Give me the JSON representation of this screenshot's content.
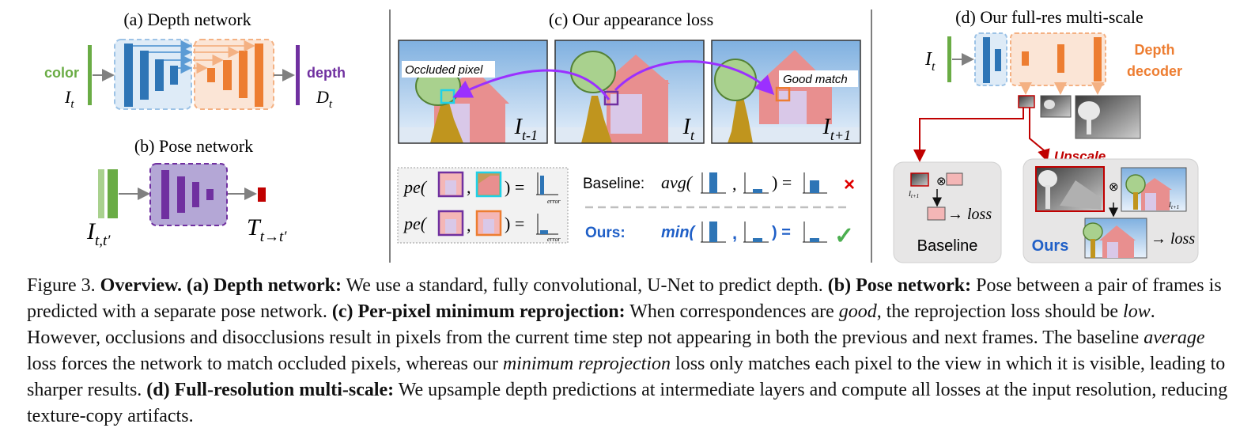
{
  "panels": {
    "a": {
      "title": "(a) Depth network",
      "color_label": "color",
      "input_symbol": "I",
      "input_sub": "t",
      "depth_label": "depth",
      "output_symbol": "D",
      "output_sub": "t"
    },
    "b": {
      "title": "(b) Pose network",
      "input_symbol": "I",
      "input_sub": "t,t′",
      "output_symbol": "T",
      "output_sub": "t→t′"
    },
    "c": {
      "title": "(c) Our appearance loss",
      "occluded_label": "Occluded pixel",
      "good_label": "Good match",
      "frame_labels": [
        {
          "symbol": "I",
          "sub": "t-1"
        },
        {
          "symbol": "I",
          "sub": "t"
        },
        {
          "symbol": "I",
          "sub": "t+1"
        }
      ],
      "pe_text": "pe(",
      "error_label": "error",
      "baseline_label": "Baseline:",
      "baseline_func": "avg(",
      "ours_label": "Ours:",
      "ours_func": "min(",
      "cross_mark": "×",
      "check_mark": "✓"
    },
    "d": {
      "title": "(d) Our full-res multi-scale",
      "input_symbol": "I",
      "input_sub": "t",
      "decoder_line1": "Depth",
      "decoder_line2": "decoder",
      "upscale_label": "Upscale",
      "otimes": "⊗",
      "loss_label": "→ loss",
      "small_sub": "t+1",
      "baseline_label": "Baseline",
      "ours_label": "Ours"
    }
  },
  "caption": {
    "figure_label": "Figure 3.",
    "s1_bold": "Overview.",
    "a_bold": "(a) Depth network:",
    "a_text": "We use a standard, fully convolutional, U-Net to predict depth.",
    "b_bold": "(b) Pose network:",
    "b_text": "Pose between a pair of frames is predicted with a separate pose network.",
    "c_bold": "(c) Per-pixel minimum reprojection:",
    "c_text1": "When correspondences are",
    "c_good": "good",
    "c_text2": ", the reprojection loss should be",
    "c_low": "low",
    "c_text3": ". However, occlusions and disocclusions result in pixels from the current time step not appearing in both the previous and next frames. The baseline",
    "c_average": "average",
    "c_text4": "loss forces the network to match occluded pixels, whereas our",
    "c_minrep": "minimum reprojection",
    "c_text5": "loss only matches each pixel to the view in which it is visible, leading to sharper results.",
    "d_bold": "(d) Full-resolution multi-scale:",
    "d_text": "We upsample depth predictions at intermediate layers and compute all losses at the input resolution, reducing texture-copy artifacts."
  },
  "colors": {
    "green": "#6aac45",
    "blue": "#2e75b6",
    "orange": "#ed7d31",
    "purple": "#7030a0",
    "arrow_purple": "#9b30ff",
    "red": "#c00000",
    "ours_blue": "#1f5fc7"
  }
}
